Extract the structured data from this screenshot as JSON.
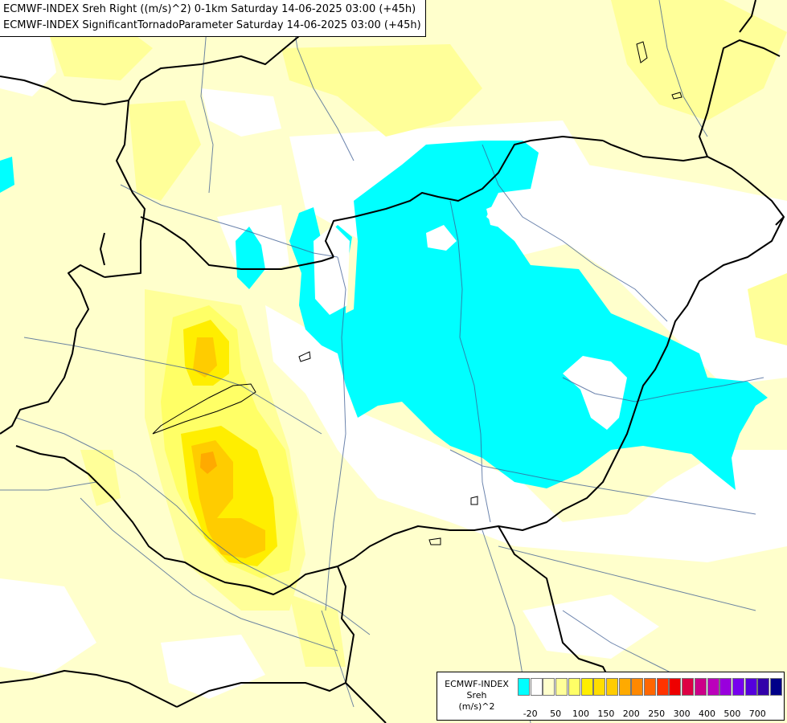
{
  "titles": {
    "line1": "ECMWF-INDEX Sreh Right ((m/s)^2) 0-1km Saturday 14-06-2025 03:00 (+45h)",
    "line2": "ECMWF-INDEX SignificantTornadoParameter Saturday 14-06-2025 03:00 (+45h)"
  },
  "legend": {
    "model": "ECMWF-INDEX",
    "variable": "Sreh",
    "unit": "(m/s)^2",
    "swatches": [
      "#00ffff",
      "#ffffff",
      "#ffffcc",
      "#ffff99",
      "#ffff66",
      "#ffee00",
      "#ffdd00",
      "#ffcc00",
      "#ffaa00",
      "#ff8800",
      "#ff6600",
      "#ff3300",
      "#ee0000",
      "#dd0044",
      "#cc0088",
      "#bb00bb",
      "#9900dd",
      "#7700ee",
      "#5500dd",
      "#3300aa",
      "#000088"
    ],
    "ticks": [
      {
        "label": "-20",
        "at": 0
      },
      {
        "label": "50",
        "at": 2
      },
      {
        "label": "100",
        "at": 4
      },
      {
        "label": "150",
        "at": 6
      },
      {
        "label": "200",
        "at": 8
      },
      {
        "label": "250",
        "at": 10
      },
      {
        "label": "300",
        "at": 12
      },
      {
        "label": "400",
        "at": 14
      },
      {
        "label": "500",
        "at": 16
      },
      {
        "label": "700",
        "at": 18
      }
    ]
  },
  "colors": {
    "background_field": "#ffffcc",
    "low_field": "#ffff99",
    "cyan_field": "#00ffff",
    "yellow_1": "#ffff66",
    "yellow_2": "#ffee00",
    "yellow_3": "#ffcc00",
    "border": "#000000",
    "river": "#3b5b92"
  }
}
